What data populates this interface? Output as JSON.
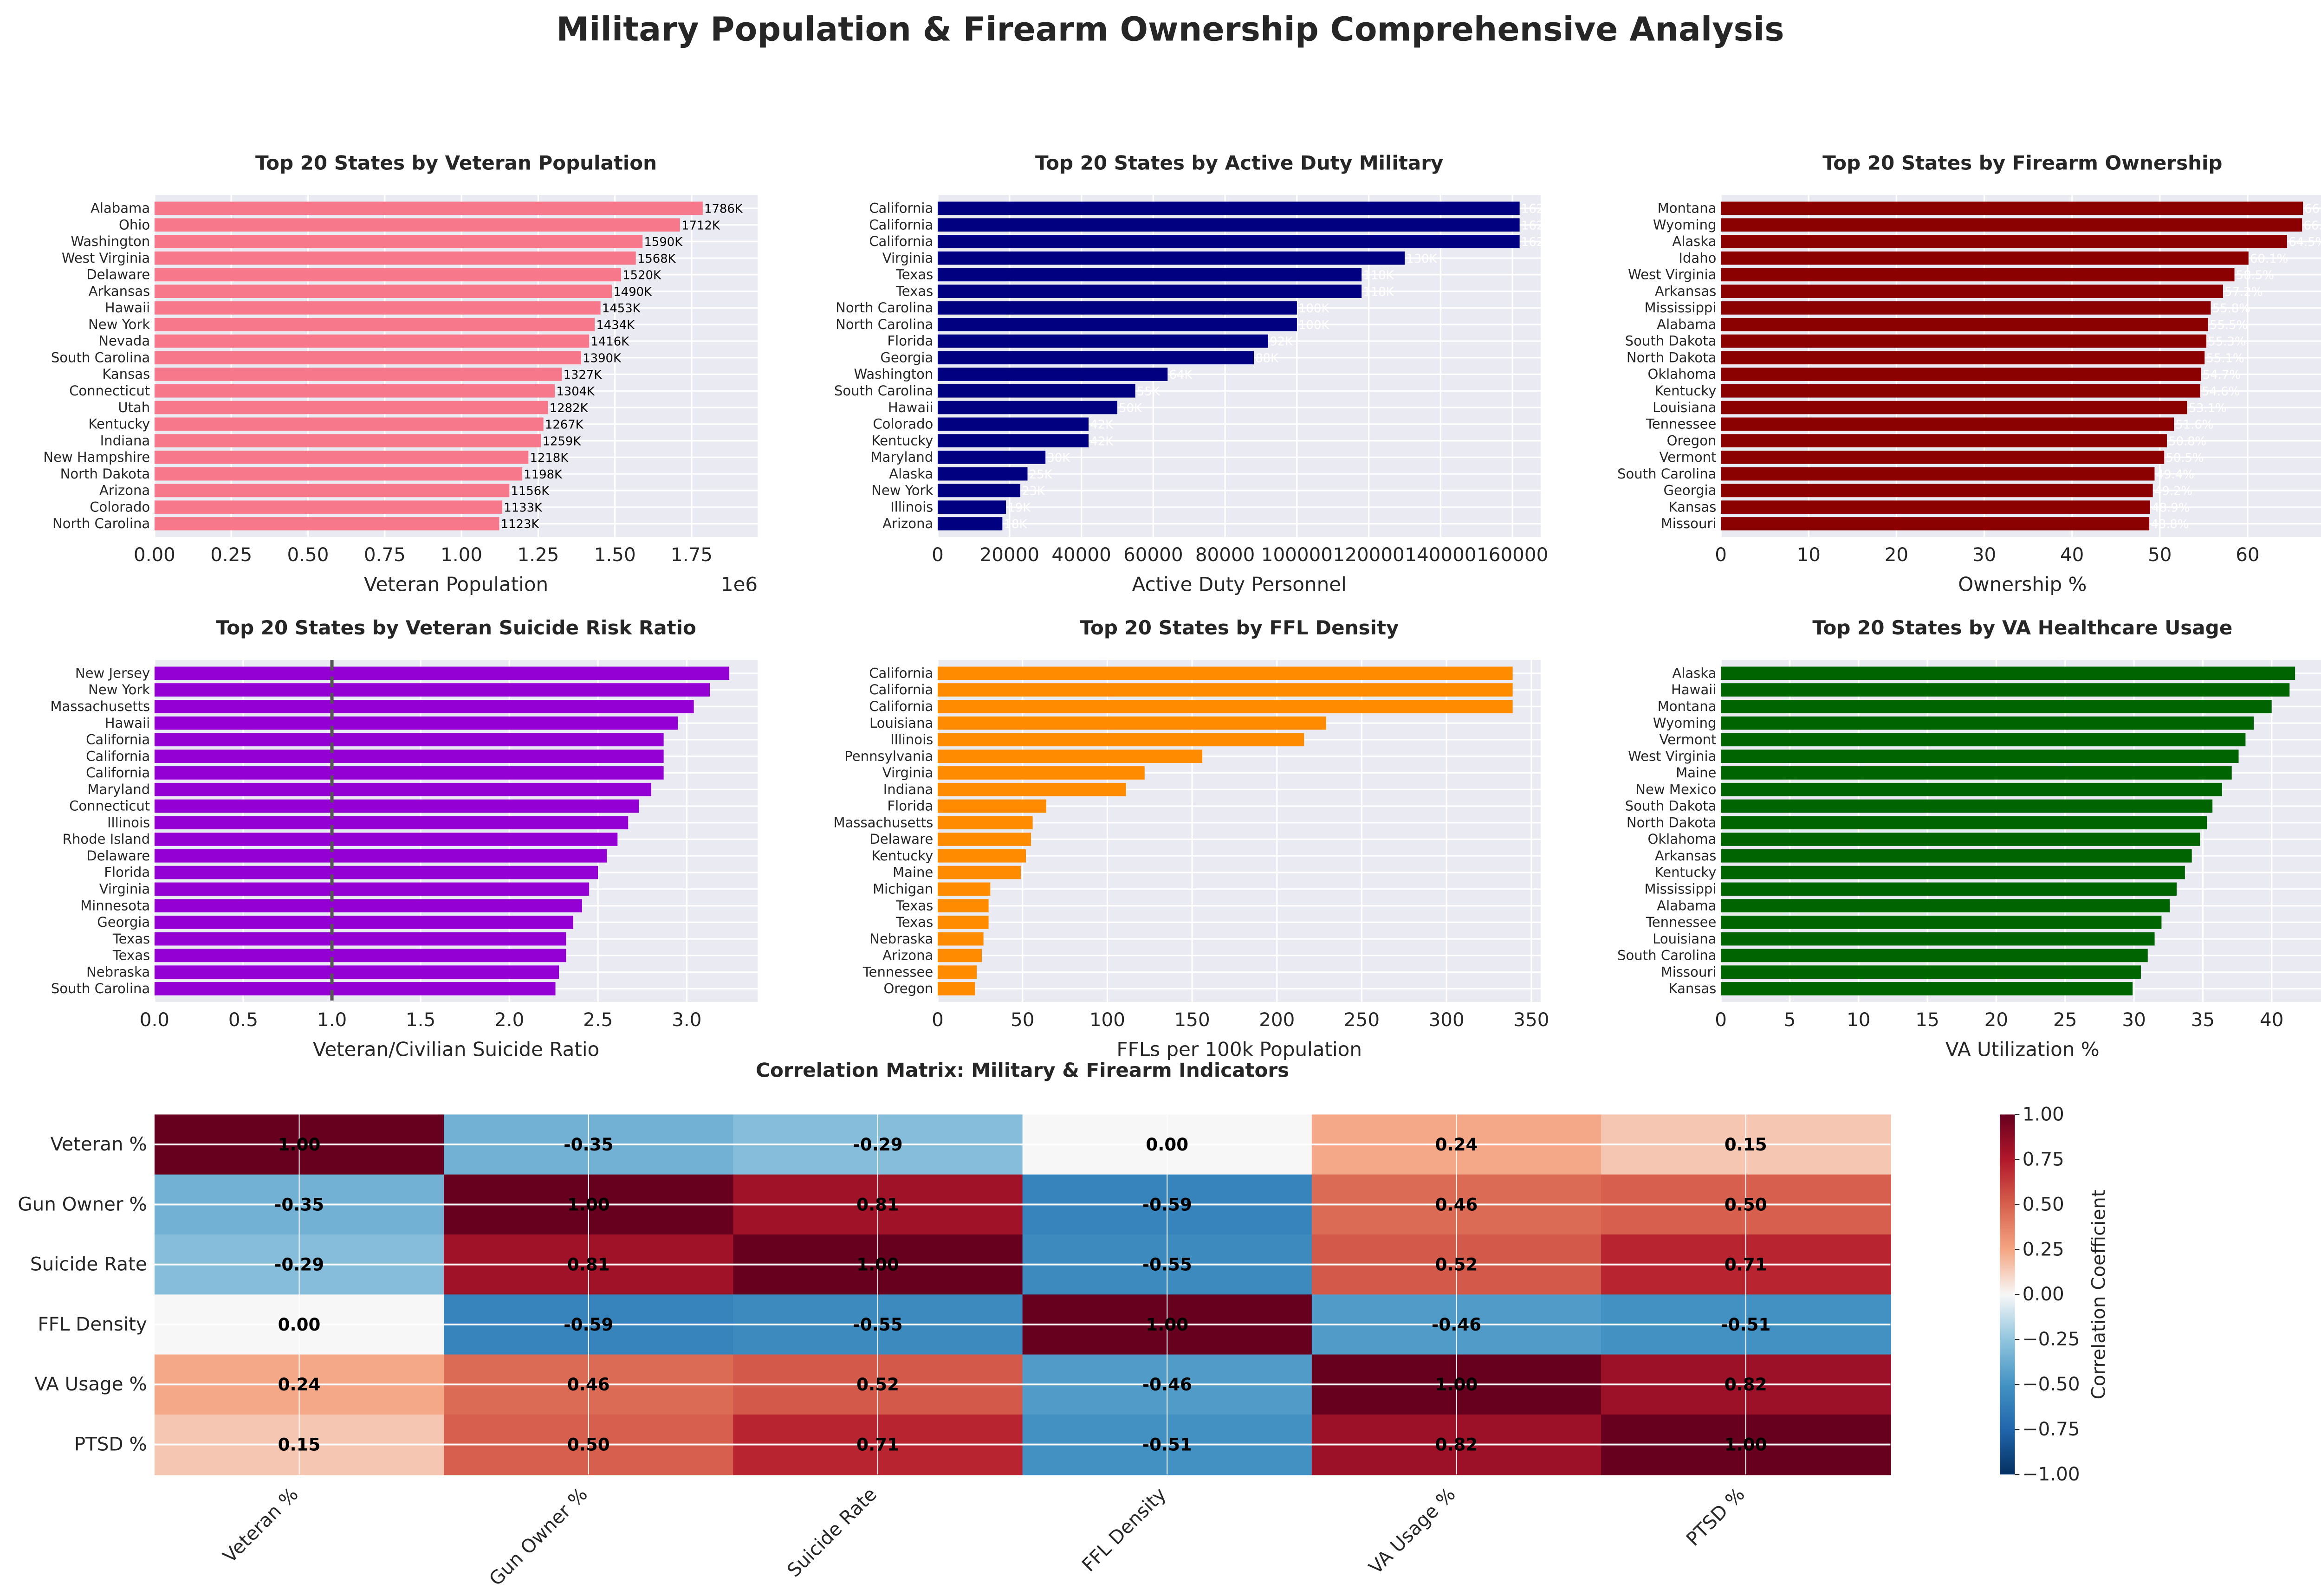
{
  "title": "Military Population & Firearm Ownership Comprehensive Analysis",
  "chart_data": [
    {
      "type": "bar",
      "orientation": "horizontal",
      "title": "Top 20 States by Veteran Population",
      "xlabel": "Veteran Population",
      "offset_label": "1e6",
      "xlim": [
        0,
        1965000
      ],
      "ticks": [
        0,
        250000,
        500000,
        750000,
        1000000,
        1250000,
        1500000,
        1750000
      ],
      "tick_labels": [
        "0.00",
        "0.25",
        "0.50",
        "0.75",
        "1.00",
        "1.25",
        "1.50",
        "1.75"
      ],
      "color": "#f7788a",
      "label_color": "#000000",
      "categories": [
        "Alabama",
        "Ohio",
        "Washington",
        "West Virginia",
        "Delaware",
        "Arkansas",
        "Hawaii",
        "New York",
        "Nevada",
        "South Carolina",
        "Kansas",
        "Connecticut",
        "Utah",
        "Kentucky",
        "Indiana",
        "New Hampshire",
        "North Dakota",
        "Arizona",
        "Colorado",
        "North Carolina"
      ],
      "values": [
        1786000,
        1712000,
        1590000,
        1568000,
        1520000,
        1490000,
        1453000,
        1434000,
        1416000,
        1390000,
        1327000,
        1304000,
        1282000,
        1267000,
        1259000,
        1218000,
        1198000,
        1156000,
        1133000,
        1123000
      ],
      "value_labels": [
        "1786K",
        "1712K",
        "1590K",
        "1568K",
        "1520K",
        "1490K",
        "1453K",
        "1434K",
        "1416K",
        "1390K",
        "1327K",
        "1304K",
        "1282K",
        "1267K",
        "1259K",
        "1218K",
        "1198K",
        "1156K",
        "1133K",
        "1123K"
      ]
    },
    {
      "type": "bar",
      "orientation": "horizontal",
      "title": "Top 20 States by Active Duty Military",
      "xlabel": "Active Duty Personnel",
      "xlim": [
        0,
        167900
      ],
      "ticks": [
        0,
        20000,
        40000,
        60000,
        80000,
        100000,
        120000,
        140000,
        160000
      ],
      "tick_labels": [
        "0",
        "20000",
        "40000",
        "60000",
        "80000",
        "100000",
        "120000",
        "140000",
        "160000"
      ],
      "color": "#000080",
      "label_color": "#ffffff",
      "categories": [
        "California",
        "California",
        "California",
        "Virginia",
        "Texas",
        "Texas",
        "North Carolina",
        "North Carolina",
        "Florida",
        "Georgia",
        "Washington",
        "South Carolina",
        "Hawaii",
        "Colorado",
        "Kentucky",
        "Maryland",
        "Alaska",
        "New York",
        "Illinois",
        "Arizona"
      ],
      "values": [
        162000,
        162000,
        162000,
        130000,
        118000,
        118000,
        100000,
        100000,
        92000,
        88000,
        64000,
        55000,
        50000,
        42000,
        42000,
        30000,
        25000,
        23000,
        19000,
        18000
      ],
      "value_labels": [
        "162K",
        "162K",
        "162K",
        "130K",
        "118K",
        "118K",
        "100K",
        "100K",
        "92K",
        "88K",
        "64K",
        "55K",
        "50K",
        "42K",
        "42K",
        "30K",
        "25K",
        "23K",
        "19K",
        "18K"
      ]
    },
    {
      "type": "bar",
      "orientation": "horizontal",
      "title": "Top 20 States by Firearm Ownership",
      "xlabel": "Ownership %",
      "xlim": [
        0,
        68.7
      ],
      "ticks": [
        0,
        10,
        20,
        30,
        40,
        50,
        60
      ],
      "tick_labels": [
        "0",
        "10",
        "20",
        "30",
        "40",
        "50",
        "60"
      ],
      "color": "#8b0000",
      "label_color": "#ffffff",
      "categories": [
        "Montana",
        "Wyoming",
        "Alaska",
        "Idaho",
        "West Virginia",
        "Arkansas",
        "Mississippi",
        "Alabama",
        "South Dakota",
        "North Dakota",
        "Oklahoma",
        "Kentucky",
        "Louisiana",
        "Tennessee",
        "Oregon",
        "Vermont",
        "South Carolina",
        "Georgia",
        "Kansas",
        "Missouri"
      ],
      "values": [
        66.3,
        66.2,
        64.5,
        60.1,
        58.5,
        57.2,
        55.8,
        55.5,
        55.3,
        55.1,
        54.7,
        54.6,
        53.1,
        51.6,
        50.8,
        50.5,
        49.4,
        49.2,
        48.9,
        48.8
      ],
      "value_labels": [
        "66.3%",
        "66.2%",
        "64.5%",
        "60.1%",
        "58.5%",
        "57.2%",
        "55.8%",
        "55.5%",
        "55.3%",
        "55.1%",
        "54.7%",
        "54.6%",
        "53.1%",
        "51.6%",
        "50.8%",
        "50.5%",
        "49.4%",
        "49.2%",
        "48.9%",
        "48.8%"
      ]
    },
    {
      "type": "bar",
      "orientation": "horizontal",
      "title": "Top 20 States by Veteran Suicide Risk Ratio",
      "xlabel": "Veteran/Civilian Suicide Ratio",
      "xlim": [
        0,
        3.4
      ],
      "ticks": [
        0,
        0.5,
        1,
        1.5,
        2,
        2.5,
        3
      ],
      "tick_labels": [
        "0.0",
        "0.5",
        "1.0",
        "1.5",
        "2.0",
        "2.5",
        "3.0"
      ],
      "reference_line": 1.0,
      "color": "#9400d3",
      "categories": [
        "New Jersey",
        "New York",
        "Massachusetts",
        "Hawaii",
        "California",
        "California",
        "California",
        "Maryland",
        "Connecticut",
        "Illinois",
        "Rhode Island",
        "Delaware",
        "Florida",
        "Virginia",
        "Minnesota",
        "Georgia",
        "Texas",
        "Texas",
        "Nebraska",
        "South Carolina"
      ],
      "values": [
        3.24,
        3.13,
        3.04,
        2.95,
        2.87,
        2.87,
        2.87,
        2.8,
        2.73,
        2.67,
        2.61,
        2.55,
        2.5,
        2.45,
        2.41,
        2.36,
        2.32,
        2.32,
        2.28,
        2.26
      ]
    },
    {
      "type": "bar",
      "orientation": "horizontal",
      "title": "Top 20 States by FFL Density",
      "xlabel": "FFLs per 100k Population",
      "xlim": [
        0,
        355.6
      ],
      "ticks": [
        0,
        50,
        100,
        150,
        200,
        250,
        300,
        350
      ],
      "tick_labels": [
        "0",
        "50",
        "100",
        "150",
        "200",
        "250",
        "300",
        "350"
      ],
      "color": "#ff8c00",
      "categories": [
        "California",
        "California",
        "California",
        "Louisiana",
        "Illinois",
        "Pennsylvania",
        "Virginia",
        "Indiana",
        "Florida",
        "Massachusetts",
        "Delaware",
        "Kentucky",
        "Maine",
        "Michigan",
        "Texas",
        "Texas",
        "Nebraska",
        "Arizona",
        "Tennessee",
        "Oregon"
      ],
      "values": [
        339,
        339,
        339,
        229,
        216,
        156,
        122,
        111,
        64,
        56,
        55,
        52,
        49,
        31,
        30,
        30,
        27,
        26,
        23,
        22
      ]
    },
    {
      "type": "bar",
      "orientation": "horizontal",
      "title": "Top 20 States by VA Healthcare Usage",
      "xlabel": "VA Utilization %",
      "xlim": [
        0,
        43.8
      ],
      "ticks": [
        0,
        5,
        10,
        15,
        20,
        25,
        30,
        35,
        40
      ],
      "tick_labels": [
        "0",
        "5",
        "10",
        "15",
        "20",
        "25",
        "30",
        "35",
        "40"
      ],
      "color": "#006400",
      "categories": [
        "Alaska",
        "Hawaii",
        "Montana",
        "Wyoming",
        "Vermont",
        "West Virginia",
        "Maine",
        "New Mexico",
        "South Dakota",
        "North Dakota",
        "Oklahoma",
        "Arkansas",
        "Kentucky",
        "Mississippi",
        "Alabama",
        "Tennessee",
        "Louisiana",
        "South Carolina",
        "Missouri",
        "Kansas"
      ],
      "values": [
        41.7,
        41.3,
        40.0,
        38.7,
        38.1,
        37.6,
        37.1,
        36.4,
        35.7,
        35.3,
        34.8,
        34.2,
        33.7,
        33.1,
        32.6,
        32.0,
        31.5,
        31.0,
        30.5,
        29.9
      ]
    },
    {
      "type": "heatmap",
      "title": "Correlation Matrix: Military & Firearm Indicators",
      "colormap": "RdBu_r",
      "vmin": -1,
      "vmax": 1,
      "colorbar_label": "Correlation Coefficient",
      "colorbar_ticks": [
        "1.00",
        "0.75",
        "0.50",
        "0.25",
        "0.00",
        "−0.25",
        "−0.50",
        "−0.75",
        "−1.00"
      ],
      "labels": [
        "Veteran %",
        "Gun Owner %",
        "Suicide Rate",
        "FFL Density",
        "VA Usage %",
        "PTSD %"
      ],
      "matrix": [
        [
          1.0,
          -0.35,
          -0.29,
          0.0,
          0.24,
          0.15
        ],
        [
          -0.35,
          1.0,
          0.81,
          -0.59,
          0.46,
          0.5
        ],
        [
          -0.29,
          0.81,
          1.0,
          -0.55,
          0.52,
          0.71
        ],
        [
          0.0,
          -0.59,
          -0.55,
          1.0,
          -0.46,
          -0.51
        ],
        [
          0.24,
          0.46,
          0.52,
          -0.46,
          1.0,
          0.82
        ],
        [
          0.15,
          0.5,
          0.71,
          -0.51,
          0.82,
          1.0
        ]
      ]
    }
  ]
}
